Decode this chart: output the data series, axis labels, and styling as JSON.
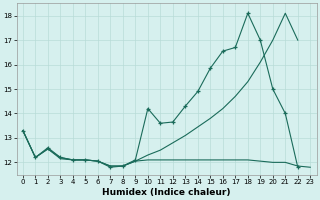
{
  "xlabel": "Humidex (Indice chaleur)",
  "bg_color": "#d6f0ee",
  "grid_color": "#b8dcd8",
  "line_color": "#1a6b5a",
  "xlim": [
    -0.5,
    23.5
  ],
  "ylim": [
    11.5,
    18.5
  ],
  "yticks": [
    12,
    13,
    14,
    15,
    16,
    17,
    18
  ],
  "xticks": [
    0,
    1,
    2,
    3,
    4,
    5,
    6,
    7,
    8,
    9,
    10,
    11,
    12,
    13,
    14,
    15,
    16,
    17,
    18,
    19,
    20,
    21,
    22,
    23
  ],
  "line1_x": [
    0,
    1,
    2,
    3,
    4,
    5,
    6,
    7,
    8,
    9,
    10,
    11,
    12,
    13,
    14,
    15,
    16,
    17,
    18,
    19,
    20,
    21,
    22
  ],
  "line1_y": [
    13.3,
    12.2,
    12.6,
    12.2,
    12.1,
    12.1,
    12.05,
    11.8,
    11.85,
    12.1,
    14.2,
    13.6,
    13.65,
    14.3,
    14.9,
    15.85,
    16.55,
    16.7,
    18.1,
    17.0,
    15.0,
    14.0,
    11.8
  ],
  "line2_x": [
    0,
    1,
    2,
    3,
    4,
    5,
    6,
    7,
    8,
    9,
    10,
    11,
    12,
    13,
    14,
    15,
    16,
    17,
    18,
    19,
    20,
    21,
    22
  ],
  "line2_y": [
    13.3,
    12.2,
    12.55,
    12.2,
    12.1,
    12.1,
    12.05,
    11.85,
    11.85,
    12.05,
    12.3,
    12.5,
    12.8,
    13.1,
    13.45,
    13.8,
    14.2,
    14.7,
    15.3,
    16.1,
    17.0,
    18.1,
    17.0
  ],
  "line3_x": [
    0,
    1,
    2,
    3,
    4,
    5,
    6,
    7,
    8,
    9,
    10,
    11,
    12,
    13,
    14,
    15,
    16,
    17,
    18,
    19,
    20,
    21,
    22,
    23
  ],
  "line3_y": [
    13.3,
    12.2,
    12.55,
    12.15,
    12.1,
    12.1,
    12.05,
    11.85,
    11.85,
    12.05,
    12.1,
    12.1,
    12.1,
    12.1,
    12.1,
    12.1,
    12.1,
    12.1,
    12.1,
    12.05,
    12.0,
    12.0,
    11.85,
    11.8
  ]
}
